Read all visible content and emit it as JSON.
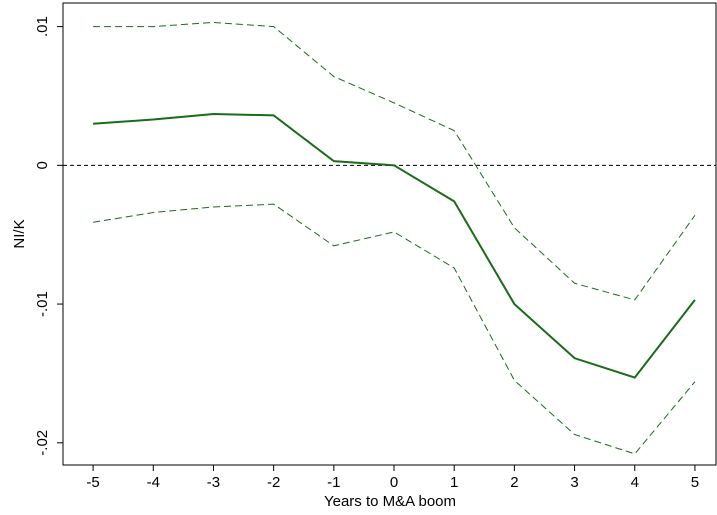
{
  "chart_data": {
    "type": "line",
    "x_label": "Years to M&A boom",
    "y_label": "NI/K",
    "x": [
      -5,
      -4,
      -3,
      -2,
      -1,
      0,
      1,
      2,
      3,
      4,
      5
    ],
    "series": [
      {
        "color": "#1a6b1a",
        "dash": false,
        "values": [
          0.003,
          0.0033,
          0.0037,
          0.0036,
          0.0003,
          0.0,
          -0.0026,
          -0.01,
          -0.0139,
          -0.0153,
          -0.0097
        ]
      },
      {
        "color": "#1a6b1a",
        "dash": true,
        "values": [
          0.01,
          0.01,
          0.0103,
          0.01,
          0.0064,
          0.0045,
          0.0025,
          -0.0045,
          -0.0085,
          -0.0097,
          -0.0036
        ]
      },
      {
        "color": "#1a6b1a",
        "dash": true,
        "values": [
          -0.0041,
          -0.0034,
          -0.003,
          -0.0028,
          -0.0058,
          -0.0048,
          -0.0074,
          -0.0155,
          -0.0194,
          -0.0208,
          -0.0156
        ]
      }
    ],
    "xlim": [
      -5.5,
      5.35
    ],
    "ylim": [
      -0.0216,
      0.0117
    ],
    "xticks": [
      -5,
      -4,
      -3,
      -2,
      -1,
      0,
      1,
      2,
      3,
      4,
      5
    ],
    "yticks": [
      {
        "value": -0.02,
        "label": "-.02"
      },
      {
        "value": -0.01,
        "label": "-.01"
      },
      0,
      {
        "value": 0.01,
        "label": ".01"
      }
    ],
    "reference_line": 0
  }
}
